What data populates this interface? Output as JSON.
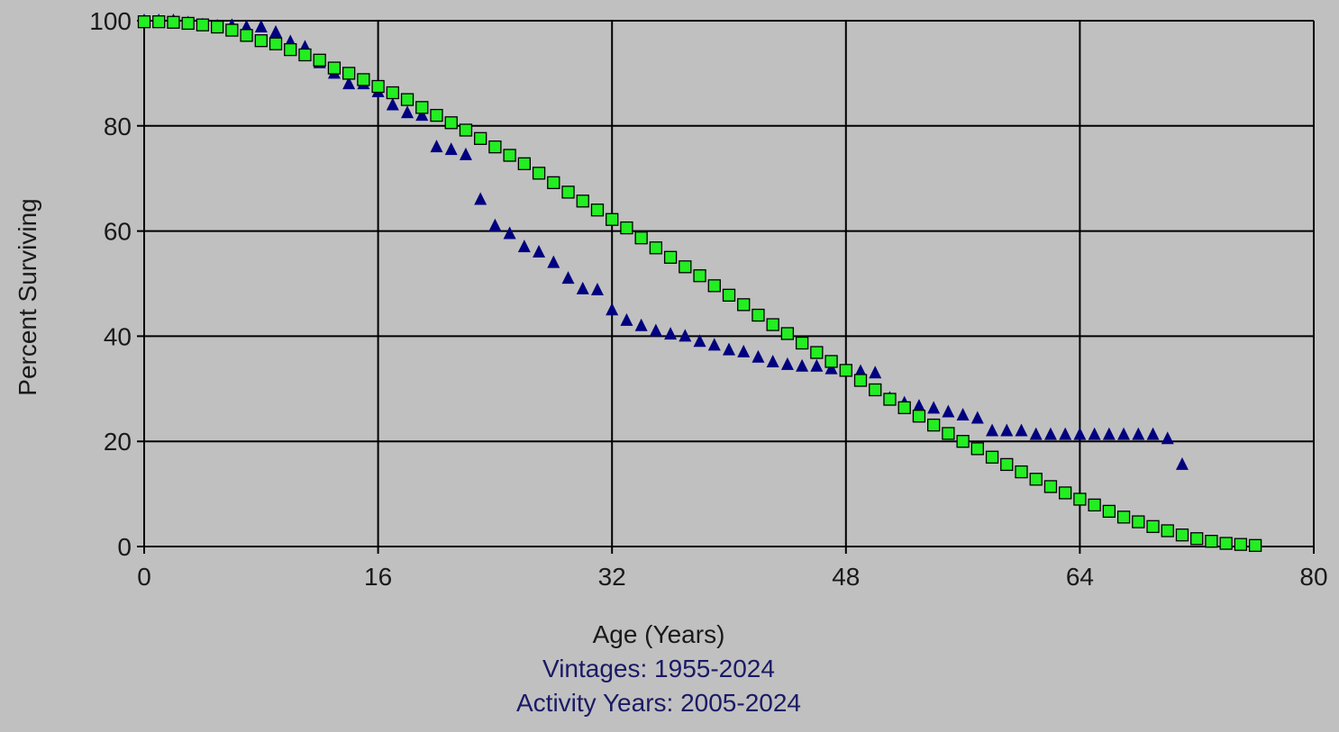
{
  "chart_data": {
    "type": "scatter",
    "xlabel": "Age (Years)",
    "ylabel": "Percent Surviving",
    "subtitles": [
      "Vintages: 1955-2024",
      "Activity Years: 2005-2024"
    ],
    "xlim": [
      0,
      80
    ],
    "ylim": [
      0,
      100
    ],
    "x_ticks": [
      0,
      16,
      32,
      48,
      64,
      80
    ],
    "y_ticks": [
      0,
      20,
      40,
      60,
      80,
      100
    ],
    "x_tick_labels": [
      "0",
      "16",
      "32",
      "48",
      "64",
      "80"
    ],
    "y_tick_labels": [
      "0",
      "20",
      "40",
      "60",
      "80",
      "100"
    ],
    "grid": true,
    "background_color": "#c0c0c0",
    "series": [
      {
        "marker": "triangle",
        "color": "#000080",
        "points": [
          [
            0,
            100
          ],
          [
            1,
            100
          ],
          [
            2,
            100
          ],
          [
            3,
            99.6
          ],
          [
            4,
            99.2
          ],
          [
            5,
            99
          ],
          [
            6,
            99.1
          ],
          [
            7,
            98.8
          ],
          [
            8,
            98.8
          ],
          [
            9,
            97.8
          ],
          [
            10,
            96
          ],
          [
            11,
            95
          ],
          [
            12,
            92
          ],
          [
            13,
            90
          ],
          [
            14,
            88
          ],
          [
            15,
            88
          ],
          [
            16,
            86.5
          ],
          [
            17,
            84
          ],
          [
            18,
            82.5
          ],
          [
            19,
            82
          ],
          [
            20,
            76
          ],
          [
            21,
            75.5
          ],
          [
            22,
            74.5
          ],
          [
            23,
            66
          ],
          [
            24,
            61
          ],
          [
            25,
            59.5
          ],
          [
            26,
            57
          ],
          [
            27,
            56
          ],
          [
            28,
            54
          ],
          [
            29,
            51
          ],
          [
            30,
            49
          ],
          [
            31,
            48.8
          ],
          [
            32,
            45
          ],
          [
            33,
            43
          ],
          [
            34,
            42
          ],
          [
            35,
            41
          ],
          [
            36,
            40.4
          ],
          [
            37,
            40
          ],
          [
            38,
            39
          ],
          [
            39,
            38.3
          ],
          [
            40,
            37.4
          ],
          [
            41,
            37
          ],
          [
            42,
            36
          ],
          [
            43,
            35.1
          ],
          [
            44,
            34.6
          ],
          [
            45,
            34.3
          ],
          [
            46,
            34.3
          ],
          [
            47,
            33.8
          ],
          [
            48,
            33.3
          ],
          [
            49,
            33.3
          ],
          [
            50,
            33
          ],
          [
            51,
            28.2
          ],
          [
            52,
            27.3
          ],
          [
            53,
            26.7
          ],
          [
            54,
            26.3
          ],
          [
            55,
            25.6
          ],
          [
            56,
            25
          ],
          [
            57,
            24.4
          ],
          [
            58,
            22
          ],
          [
            59,
            22
          ],
          [
            60,
            22
          ],
          [
            61,
            21.3
          ],
          [
            62,
            21.3
          ],
          [
            63,
            21.3
          ],
          [
            64,
            21.3
          ],
          [
            65,
            21.3
          ],
          [
            66,
            21.3
          ],
          [
            67,
            21.3
          ],
          [
            68,
            21.3
          ],
          [
            69,
            21.3
          ],
          [
            70,
            20.5
          ],
          [
            71,
            15.6
          ]
        ]
      },
      {
        "marker": "square",
        "color": "#22ee22",
        "points": [
          [
            0,
            99.8
          ],
          [
            1,
            99.8
          ],
          [
            2,
            99.7
          ],
          [
            3,
            99.5
          ],
          [
            4,
            99.2
          ],
          [
            5,
            98.8
          ],
          [
            6,
            98.2
          ],
          [
            7,
            97.2
          ],
          [
            8,
            96.2
          ],
          [
            9,
            95.6
          ],
          [
            10,
            94.5
          ],
          [
            11,
            93.5
          ],
          [
            12,
            92.5
          ],
          [
            13,
            91
          ],
          [
            14,
            90
          ],
          [
            15,
            88.8
          ],
          [
            16,
            87.5
          ],
          [
            17,
            86.3
          ],
          [
            18,
            85
          ],
          [
            19,
            83.5
          ],
          [
            20,
            82
          ],
          [
            21,
            80.6
          ],
          [
            22,
            79.2
          ],
          [
            23,
            77.6
          ],
          [
            24,
            76
          ],
          [
            25,
            74.4
          ],
          [
            26,
            72.8
          ],
          [
            27,
            71
          ],
          [
            28,
            69.2
          ],
          [
            29,
            67.4
          ],
          [
            30,
            65.7
          ],
          [
            31,
            64
          ],
          [
            32,
            62.2
          ],
          [
            33,
            60.6
          ],
          [
            34,
            58.7
          ],
          [
            35,
            56.8
          ],
          [
            36,
            55
          ],
          [
            37,
            53.2
          ],
          [
            38,
            51.5
          ],
          [
            39,
            49.6
          ],
          [
            40,
            47.8
          ],
          [
            41,
            46
          ],
          [
            42,
            44
          ],
          [
            43,
            42.2
          ],
          [
            44,
            40.5
          ],
          [
            45,
            38.7
          ],
          [
            46,
            36.9
          ],
          [
            47,
            35.2
          ],
          [
            48,
            33.5
          ],
          [
            49,
            31.6
          ],
          [
            50,
            29.8
          ],
          [
            51,
            28
          ],
          [
            52,
            26.4
          ],
          [
            53,
            24.8
          ],
          [
            54,
            23.1
          ],
          [
            55,
            21.5
          ],
          [
            56,
            20
          ],
          [
            57,
            18.6
          ],
          [
            58,
            17
          ],
          [
            59,
            15.6
          ],
          [
            60,
            14.2
          ],
          [
            61,
            12.8
          ],
          [
            62,
            11.4
          ],
          [
            63,
            10.2
          ],
          [
            64,
            9
          ],
          [
            65,
            7.9
          ],
          [
            66,
            6.7
          ],
          [
            67,
            5.6
          ],
          [
            68,
            4.7
          ],
          [
            69,
            3.8
          ],
          [
            70,
            3
          ],
          [
            71,
            2.2
          ],
          [
            72,
            1.5
          ],
          [
            73,
            1
          ],
          [
            74,
            0.6
          ],
          [
            75,
            0.4
          ],
          [
            76,
            0.2
          ]
        ]
      }
    ]
  }
}
